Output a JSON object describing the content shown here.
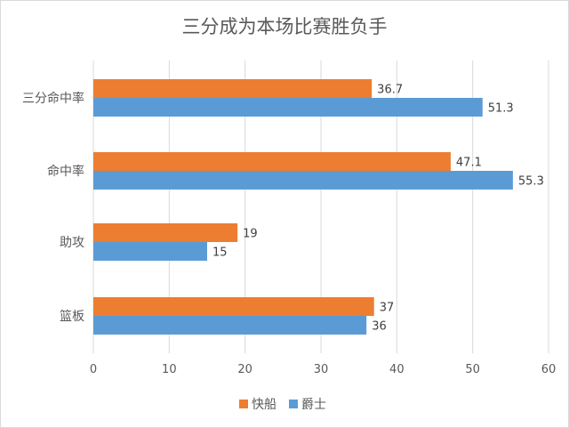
{
  "chart_data": {
    "type": "bar",
    "orientation": "horizontal",
    "title": "三分成为本场比赛胜负手",
    "categories": [
      "三分命中率",
      "命中率",
      "助攻",
      "篮板"
    ],
    "series": [
      {
        "name": "快船",
        "color": "#ED7D31",
        "values": [
          36.7,
          47.1,
          19,
          37
        ],
        "labels": [
          "36.7",
          "47.1",
          "19",
          "37"
        ]
      },
      {
        "name": "爵士",
        "color": "#5B9BD5",
        "values": [
          51.3,
          55.3,
          15,
          36
        ],
        "labels": [
          "51.3",
          "55.3",
          "15",
          "36"
        ]
      }
    ],
    "xlim": [
      0,
      60
    ],
    "xticks": [
      "0",
      "10",
      "20",
      "30",
      "40",
      "50",
      "60"
    ],
    "grid": true,
    "legend": "bottom"
  }
}
